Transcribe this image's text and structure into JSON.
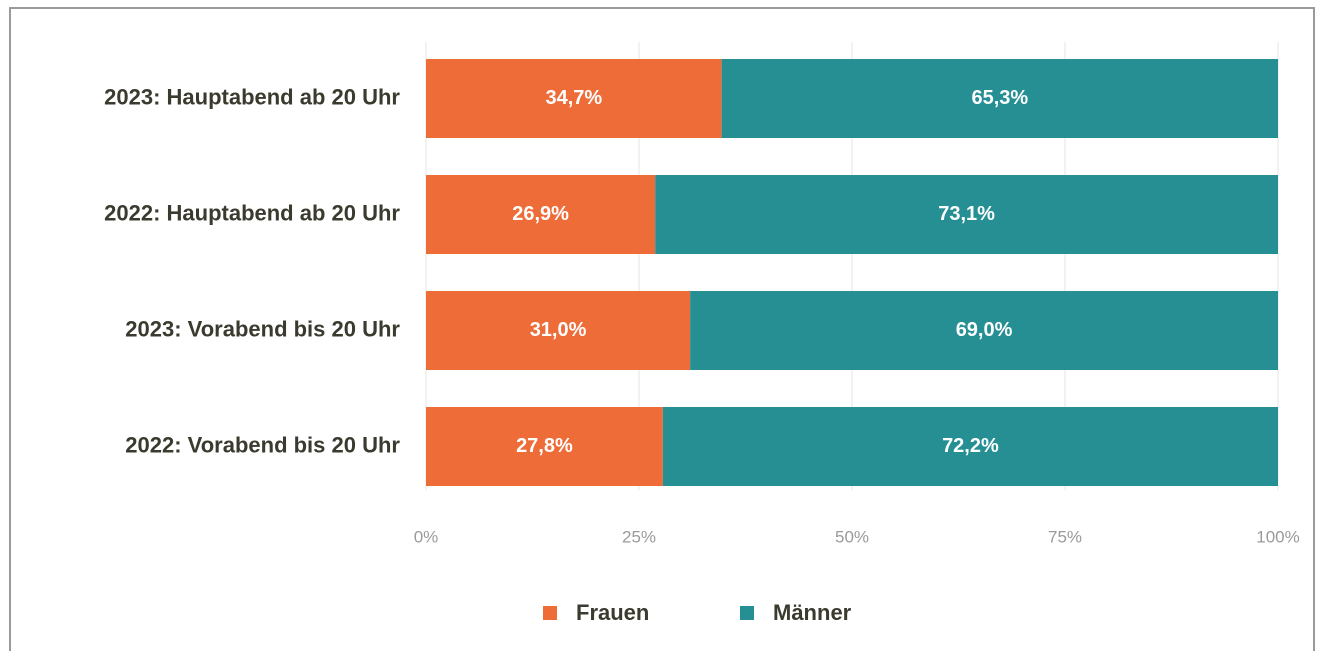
{
  "chart_data": {
    "type": "stacked-barh",
    "categories": [
      "2023: Hauptabend ab 20 Uhr",
      "2022: Hauptabend ab 20 Uhr",
      "2023: Vorabend bis 20 Uhr",
      "2022: Vorabend bis 20 Uhr"
    ],
    "series": [
      {
        "name": "Frauen",
        "color": "#ee6c37",
        "values": [
          34.7,
          26.9,
          31.0,
          27.8
        ],
        "value_labels": [
          "34,7%",
          "26,9%",
          "31,0%",
          "27,8%"
        ]
      },
      {
        "name": "Männer",
        "color": "#258f94",
        "values": [
          65.3,
          73.1,
          69.0,
          72.2
        ],
        "value_labels": [
          "65,3%",
          "73,1%",
          "69,0%",
          "72,2%"
        ]
      }
    ],
    "xlim": [
      0,
      100
    ],
    "xticks": [
      {
        "value": 0,
        "label": "0%"
      },
      {
        "value": 25,
        "label": "25%"
      },
      {
        "value": 50,
        "label": "50%"
      },
      {
        "value": 75,
        "label": "75%"
      },
      {
        "value": 100,
        "label": "100%"
      }
    ],
    "grid": true,
    "legend": "bottom"
  }
}
